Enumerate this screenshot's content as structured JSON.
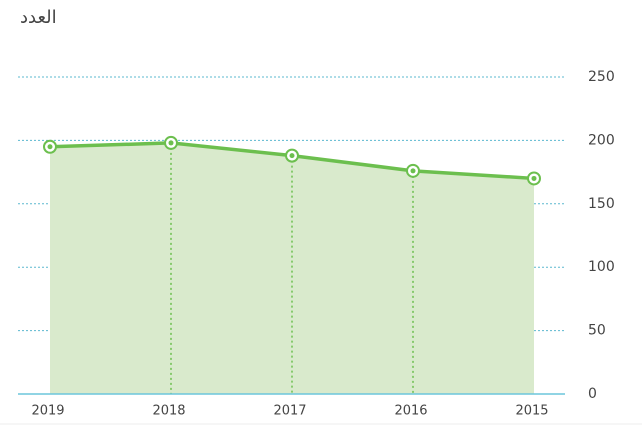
{
  "chart_data": {
    "type": "area",
    "y_label": "العدد",
    "categories": [
      "2019",
      "2018",
      "2017",
      "2016",
      "2015"
    ],
    "values": [
      195,
      198,
      188,
      176,
      170
    ],
    "color": "#6cbf4e",
    "fill": "#d9eacc",
    "ylim": [
      0,
      250
    ],
    "yticks": [
      0,
      50,
      100,
      150,
      200,
      250
    ],
    "grid": true
  }
}
